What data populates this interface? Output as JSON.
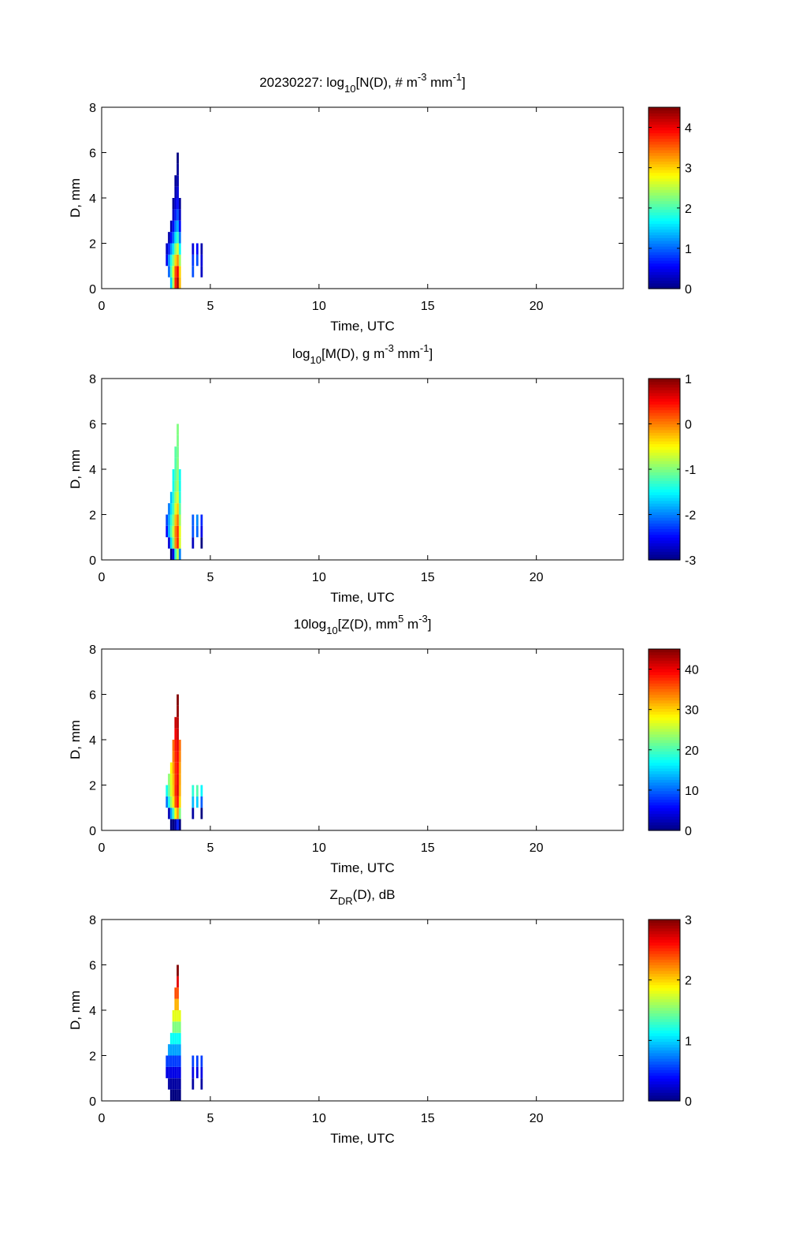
{
  "chart_data": [
    {
      "type": "heatmap",
      "title_parts": [
        {
          "t": "20230227: log"
        },
        {
          "t": "10",
          "s": "sub"
        },
        {
          "t": "[N(D), # m"
        },
        {
          "t": "-3",
          "s": "sup"
        },
        {
          "t": " mm"
        },
        {
          "t": "-1",
          "s": "sup"
        },
        {
          "t": "]"
        }
      ],
      "xlabel": "Time, UTC",
      "ylabel": "D, mm",
      "xlim": [
        0,
        24
      ],
      "ylim": [
        0,
        8
      ],
      "xticks": [
        0,
        5,
        10,
        15,
        20
      ],
      "yticks": [
        0,
        2,
        4,
        6,
        8
      ],
      "clim": [
        0,
        4.5
      ],
      "cticks": [
        0,
        1,
        2,
        3,
        4
      ],
      "times": [
        3.0,
        3.1,
        3.2,
        3.3,
        3.4,
        3.5,
        3.6,
        4.2,
        4.4,
        4.6
      ],
      "D_bins": [
        0.25,
        0.75,
        1.25,
        1.75,
        2.25,
        2.75,
        3.25,
        3.75,
        4.25,
        4.75,
        5.25,
        5.75
      ],
      "values": [
        [
          null,
          null,
          0.5,
          0.3
        ],
        [
          null,
          1.0,
          1.2,
          0.7,
          0.2
        ],
        [
          1.5,
          2.0,
          1.8,
          1.2,
          0.6,
          0.2
        ],
        [
          2.5,
          2.7,
          2.3,
          1.6,
          1.0,
          0.6,
          0.3,
          0.1
        ],
        [
          3.8,
          3.6,
          3.0,
          2.3,
          1.6,
          1.1,
          0.7,
          0.4,
          0.2,
          0.1
        ],
        [
          4.3,
          4.0,
          3.3,
          2.6,
          1.9,
          1.3,
          0.9,
          0.6,
          0.4,
          0.2,
          0.1,
          0.0
        ],
        [
          3.1,
          3.0,
          2.4,
          1.7,
          1.1,
          0.6,
          0.3,
          0.1
        ],
        [
          null,
          0.9,
          0.8,
          0.4
        ],
        [
          null,
          null,
          0.9,
          0.6
        ],
        [
          null,
          0.3,
          0.4,
          0.2
        ]
      ]
    },
    {
      "type": "heatmap",
      "title_parts": [
        {
          "t": "log"
        },
        {
          "t": "10",
          "s": "sub"
        },
        {
          "t": "[M(D), g m"
        },
        {
          "t": "-3",
          "s": "sup"
        },
        {
          "t": " mm"
        },
        {
          "t": "-1",
          "s": "sup"
        },
        {
          "t": "]"
        }
      ],
      "xlabel": "Time, UTC",
      "ylabel": "D, mm",
      "xlim": [
        0,
        24
      ],
      "ylim": [
        0,
        8
      ],
      "xticks": [
        0,
        5,
        10,
        15,
        20
      ],
      "yticks": [
        0,
        2,
        4,
        6,
        8
      ],
      "clim": [
        -3,
        1
      ],
      "cticks": [
        -3,
        -2,
        -1,
        0,
        1
      ],
      "times": [
        3.0,
        3.1,
        3.2,
        3.3,
        3.4,
        3.5,
        3.6,
        4.2,
        4.4,
        4.6
      ],
      "D_bins": [
        0.25,
        0.75,
        1.25,
        1.75,
        2.25,
        2.75,
        3.25,
        3.75,
        4.25,
        4.75,
        5.25,
        5.75
      ],
      "values": [
        [
          null,
          null,
          -2.49,
          -2.25
        ],
        [
          null,
          -2.65,
          -1.79,
          -1.85,
          -2.02
        ],
        [
          -3.59,
          -1.65,
          -1.19,
          -1.35,
          -1.62,
          -1.76
        ],
        [
          -2.59,
          -0.95,
          -0.69,
          -0.95,
          -1.22,
          -1.36,
          -1.44,
          -1.46
        ],
        [
          -1.29,
          -0.05,
          0.01,
          -0.25,
          -0.62,
          -0.86,
          -1.04,
          -1.16,
          -1.19,
          -1.15
        ],
        [
          -0.79,
          0.35,
          0.31,
          0.05,
          -0.32,
          -0.66,
          -0.84,
          -0.96,
          -0.99,
          -1.05,
          -1.02,
          -1.0
        ],
        [
          -1.99,
          -0.65,
          -0.59,
          -0.85,
          -1.12,
          -1.36,
          -1.44,
          -1.46
        ],
        [
          null,
          -2.75,
          -2.19,
          -2.15
        ],
        [
          null,
          null,
          -2.09,
          -1.95
        ],
        [
          null,
          -3.35,
          -2.59,
          -2.35
        ]
      ]
    },
    {
      "type": "heatmap",
      "title_parts": [
        {
          "t": "10log"
        },
        {
          "t": "10",
          "s": "sub"
        },
        {
          "t": "[Z(D),  mm"
        },
        {
          "t": "5",
          "s": "sup"
        },
        {
          "t": " m"
        },
        {
          "t": "-3",
          "s": "sup"
        },
        {
          "t": "]"
        }
      ],
      "xlabel": "Time, UTC",
      "ylabel": "D, mm",
      "xlim": [
        0,
        24
      ],
      "ylim": [
        0,
        8
      ],
      "xticks": [
        0,
        5,
        10,
        15,
        20
      ],
      "yticks": [
        0,
        2,
        4,
        6,
        8
      ],
      "clim": [
        0,
        45
      ],
      "cticks": [
        0,
        10,
        20,
        30,
        40
      ],
      "times": [
        3.0,
        3.1,
        3.2,
        3.3,
        3.4,
        3.5,
        3.6,
        4.2,
        4.4,
        4.6
      ],
      "D_bins": [
        0.25,
        0.75,
        1.25,
        1.75,
        2.25,
        2.75,
        3.25,
        3.75,
        4.25,
        4.75,
        5.25,
        5.75
      ],
      "values": [
        [
          null,
          null,
          10.8,
          17.6
        ],
        [
          null,
          2.5,
          17.8,
          21.6,
          23.1
        ],
        [
          -21.1,
          12.5,
          23.8,
          26.6,
          27.1,
          28.4
        ],
        [
          -11.1,
          19.5,
          28.8,
          30.6,
          31.1,
          32.4,
          33.7,
          34.5
        ],
        [
          1.9,
          28.5,
          35.8,
          37.6,
          37.1,
          37.4,
          37.7,
          38.4,
          39.7,
          41.6
        ],
        [
          6.9,
          32.5,
          38.8,
          40.6,
          40.1,
          39.4,
          39.7,
          40.4,
          41.7,
          42.6,
          44.2,
          45.6
        ],
        [
          -5.1,
          22.5,
          29.8,
          31.6,
          32.1,
          32.4,
          33.7,
          34.5
        ],
        [
          null,
          1.5,
          13.8,
          18.6
        ],
        [
          null,
          null,
          14.8,
          20.6
        ],
        [
          null,
          -4.5,
          9.8,
          16.6
        ]
      ]
    },
    {
      "type": "heatmap",
      "title_parts": [
        {
          "t": "Z"
        },
        {
          "t": "DR",
          "s": "sub"
        },
        {
          "t": "(D), dB"
        }
      ],
      "xlabel": "Time, UTC",
      "ylabel": "D, mm",
      "xlim": [
        0,
        24
      ],
      "ylim": [
        0,
        8
      ],
      "xticks": [
        0,
        5,
        10,
        15,
        20
      ],
      "yticks": [
        0,
        2,
        4,
        6,
        8
      ],
      "clim": [
        0,
        3
      ],
      "cticks": [
        0,
        1,
        2,
        3
      ],
      "times": [
        3.0,
        3.1,
        3.2,
        3.3,
        3.4,
        3.5,
        3.6,
        4.2,
        4.4,
        4.6
      ],
      "D_bins": [
        0.25,
        0.75,
        1.25,
        1.75,
        2.25,
        2.75,
        3.25,
        3.75,
        4.25,
        4.75,
        5.25,
        5.75
      ],
      "values": [
        [
          null,
          null,
          0.3,
          0.55
        ],
        [
          null,
          0.1,
          0.3,
          0.55,
          0.85
        ],
        [
          0,
          0.1,
          0.3,
          0.55,
          0.85,
          1.15
        ],
        [
          0,
          0.1,
          0.3,
          0.55,
          0.85,
          1.15,
          1.5,
          1.8
        ],
        [
          0,
          0.1,
          0.3,
          0.55,
          0.85,
          1.15,
          1.5,
          1.8,
          2.1,
          2.4
        ],
        [
          0,
          0.1,
          0.3,
          0.55,
          0.85,
          1.15,
          1.5,
          1.8,
          2.1,
          2.4,
          2.7,
          3.0
        ],
        [
          0,
          0.1,
          0.3,
          0.55,
          0.85,
          1.15,
          1.5,
          1.8
        ],
        [
          null,
          0.1,
          0.3,
          0.55
        ],
        [
          null,
          null,
          0.3,
          0.55
        ],
        [
          null,
          0.1,
          0.3,
          0.55
        ]
      ]
    }
  ]
}
